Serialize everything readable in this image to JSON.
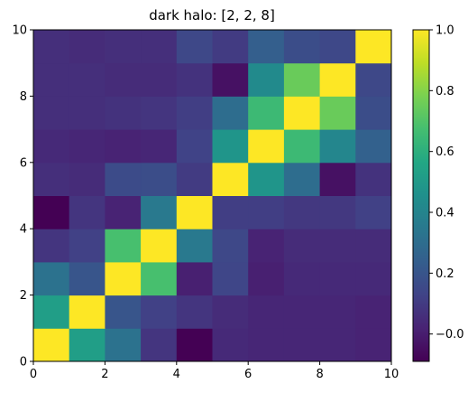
{
  "chart_data": {
    "type": "heatmap",
    "title": "dark halo: [2, 2, 8]",
    "xlabel": "",
    "ylabel": "",
    "xlim": [
      0,
      10
    ],
    "ylim": [
      0,
      10
    ],
    "x_ticks": [
      "0",
      "2",
      "4",
      "6",
      "8",
      "10"
    ],
    "y_ticks": [
      "0",
      "2",
      "4",
      "6",
      "8",
      "10"
    ],
    "grid": false,
    "colormap": "viridis",
    "color_range": [
      -0.09,
      1.0
    ],
    "colorbar_ticks": [
      "−0.0",
      "0.2",
      "0.4",
      "0.6",
      "0.8",
      "1.0"
    ],
    "colorbar_tick_values": [
      0.0,
      0.2,
      0.4,
      0.6,
      0.8,
      1.0
    ],
    "rows_bottom_to_top": [
      [
        1.0,
        0.52,
        0.32,
        0.08,
        -0.09,
        0.04,
        0.03,
        0.03,
        0.03,
        0.02
      ],
      [
        0.52,
        1.0,
        0.2,
        0.12,
        0.08,
        0.05,
        0.03,
        0.03,
        0.03,
        0.02
      ],
      [
        0.32,
        0.2,
        1.0,
        0.68,
        0.01,
        0.14,
        0.01,
        0.04,
        0.04,
        0.04
      ],
      [
        0.08,
        0.12,
        0.68,
        1.0,
        0.35,
        0.15,
        0.02,
        0.05,
        0.05,
        0.05
      ],
      [
        -0.09,
        0.08,
        0.02,
        0.35,
        1.0,
        0.11,
        0.11,
        0.09,
        0.09,
        0.12
      ],
      [
        0.06,
        0.05,
        0.16,
        0.17,
        0.1,
        1.0,
        0.48,
        0.3,
        -0.04,
        0.07
      ],
      [
        0.04,
        0.03,
        0.02,
        0.03,
        0.13,
        0.48,
        1.0,
        0.65,
        0.41,
        0.25
      ],
      [
        0.06,
        0.06,
        0.07,
        0.08,
        0.11,
        0.3,
        0.65,
        1.0,
        0.75,
        0.17
      ],
      [
        0.06,
        0.06,
        0.05,
        0.05,
        0.07,
        -0.04,
        0.43,
        0.75,
        1.0,
        0.15
      ],
      [
        0.06,
        0.05,
        0.06,
        0.06,
        0.15,
        0.1,
        0.24,
        0.17,
        0.15,
        1.0
      ]
    ]
  }
}
